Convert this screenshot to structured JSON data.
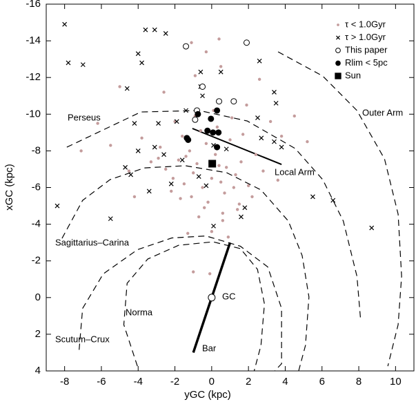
{
  "chart_data": {
    "type": "scatter",
    "xlabel": "yGC (kpc)",
    "ylabel": "xGC (kpc)",
    "xlim": [
      -9,
      11
    ],
    "xticks": [
      -8,
      -6,
      -4,
      -2,
      0,
      2,
      4,
      6,
      8,
      10
    ],
    "ylim": [
      -16,
      4
    ],
    "yticks": [
      -16,
      -14,
      -12,
      -10,
      -8,
      -6,
      -4,
      -2,
      0,
      2,
      4
    ],
    "legend": "upper right",
    "series": [
      {
        "name": "τ < 1.0Gyr",
        "marker": "dot",
        "color": "#c49c9c",
        "x": [
          -2.5,
          -2.1,
          -1.8,
          -1.5,
          -1.2,
          -1,
          -0.8,
          -0.5,
          -0.3,
          0,
          0.2,
          0.5,
          0.8,
          1,
          1.3,
          1.6,
          2,
          2.4,
          2.8,
          -2.8,
          -2.2,
          -1.6,
          -1.1,
          -0.6,
          -0.2,
          0.3,
          0.7,
          1.2,
          1.7,
          2.2,
          -2,
          -1.4,
          -0.9,
          -0.4,
          0.1,
          0.6,
          1.1,
          1.5,
          -1.7,
          -0.7,
          0.4,
          1.4,
          -3.3,
          -3.8,
          -4.5,
          -5.5,
          -6.2,
          -7.1,
          3.2,
          3.8,
          4.5,
          5.2,
          -0.9,
          0.5,
          -0.3,
          -2.6,
          2.6,
          -1.3,
          0.9,
          -0.1,
          1.9,
          -4.2,
          -5,
          3.6,
          0.6,
          -1,
          -1.1,
          0,
          0.4,
          -2.9
        ],
        "y": [
          -7,
          -6.5,
          -7.5,
          -6.2,
          -8,
          -6.8,
          -7.3,
          -6,
          -8.4,
          -6.5,
          -7.8,
          -6.3,
          -7.1,
          -8.6,
          -6.7,
          -7.4,
          -6.1,
          -7.8,
          -6.9,
          -8.2,
          -5.8,
          -8.8,
          -5.5,
          -9.1,
          -5.2,
          -9.3,
          -5.7,
          -6,
          -8.9,
          -5.5,
          -9.6,
          -7.7,
          -9.9,
          -4.9,
          -10.2,
          -4.6,
          -9.8,
          -5.1,
          -5.4,
          -4.4,
          -7.2,
          -4.8,
          -7.4,
          -8.7,
          -6.9,
          -8.3,
          -9.5,
          -8,
          -9.6,
          -8.8,
          -9.9,
          -8.5,
          -12.1,
          -12.6,
          -13.4,
          -11.2,
          -11.9,
          -3.5,
          -3.3,
          -1.3,
          -10.5,
          -5.5,
          -11.5,
          -6.4,
          -4.2,
          -1.4,
          -13.9,
          -3.6,
          -14.1,
          -7.6
        ]
      },
      {
        "name": "τ > 1.0Gyr",
        "marker": "cross",
        "color": "#000000",
        "x": [
          -8,
          -7.8,
          -7,
          -3.6,
          -3.1,
          -2.5,
          -4,
          -3.8,
          -4.6,
          -0.6,
          -0.6,
          2.6,
          3.4,
          3.5,
          3.4,
          1.8,
          1.6,
          0.1,
          -8.4,
          -5.5,
          8.7,
          5.5,
          6.6,
          -2.9,
          -1.9,
          -4.2,
          -4.7,
          -4.4,
          -3.4,
          -2.2,
          -4,
          -0.7,
          -0.3,
          0.1,
          -1.6,
          0.8,
          2.7,
          2.5,
          -3.1,
          3.8,
          -0.5,
          0.5,
          -2.6,
          -1.4
        ],
        "y": [
          -14.9,
          -12.8,
          -12.7,
          -14.6,
          -14.6,
          -14.4,
          -13.3,
          -12.8,
          -11.4,
          -12.3,
          -11.5,
          -12.9,
          -11.2,
          -10.6,
          -8.5,
          -4.9,
          -4.4,
          -3.9,
          -5,
          -4.3,
          -3.8,
          -5.5,
          -5.3,
          -9.5,
          -9.6,
          -9.5,
          -7.1,
          -6.7,
          -5.8,
          -6.2,
          -8,
          -6.6,
          -6.1,
          -8.3,
          -7.5,
          -8.1,
          -8.7,
          -9.8,
          -8.2,
          -8.2,
          -11,
          -12.3,
          -7.8,
          -10.2
        ]
      },
      {
        "name": "This paper",
        "marker": "open-circle",
        "color": "#000000",
        "x": [
          -1.4,
          1.9,
          -0.5,
          1.2,
          0.4,
          -0.8,
          -0.9
        ],
        "y": [
          -13.7,
          -13.9,
          -11.5,
          -10.7,
          -10.7,
          -10.2,
          -9.7
        ]
      },
      {
        "name": "Rlim < 5pc",
        "marker": "filled-circle",
        "color": "#000000",
        "x": [
          -0.75,
          -0.04,
          0.29,
          -0.23,
          0.07,
          0.37,
          -1.35,
          -1.28,
          0.29
        ],
        "y": [
          -10,
          -9.75,
          -10.2,
          -9.1,
          -9,
          -9,
          -8.7,
          -8.6,
          -8.2
        ]
      },
      {
        "name": "Sun",
        "marker": "square",
        "color": "#000000",
        "x": [
          0.03
        ],
        "y": [
          -7.3
        ]
      }
    ],
    "center": {
      "x": 0,
      "y": 0
    },
    "lines": [
      {
        "style": "dashed",
        "width": 1.2,
        "x": [
          -7.88,
          -3.85,
          -0.68,
          1.93,
          4.54,
          6.04,
          7.16,
          7.9,
          8.09
        ],
        "y": [
          -8.2,
          -10.12,
          -10.2,
          -9.63,
          -8.13,
          -6.43,
          -4.17,
          -1.16,
          1.1
        ]
      },
      {
        "style": "dashed",
        "width": 1.2,
        "x": [
          3.61,
          6.04,
          7.9,
          9.4,
          10.14,
          10.33,
          10.14,
          9.58
        ],
        "y": [
          -13.4,
          -12.08,
          -10.2,
          -7.56,
          -4.55,
          -1.16,
          1.48,
          3.74
        ]
      },
      {
        "style": "dashed",
        "width": 1.2,
        "x": [
          -8.14,
          -7.02,
          -5.53,
          -3.66,
          -1.43,
          0.81,
          2.68,
          4.17,
          4.92,
          5.29,
          5.1,
          4.73
        ],
        "y": [
          -3.23,
          -5.3,
          -6.43,
          -7.07,
          -7.19,
          -6.81,
          -5.87,
          -4.17,
          -2.29,
          -0.03,
          2.61,
          4
        ]
      },
      {
        "style": "dashed",
        "width": 1.2,
        "x": [
          -7.21,
          -7.02,
          -5.9,
          -4.04,
          -2.17,
          -0.31,
          1.56,
          3.05,
          3.8,
          3.8,
          3.43
        ],
        "y": [
          2.85,
          0.59,
          -1.29,
          -2.61,
          -3.25,
          -3.36,
          -2.8,
          -1.67,
          0.59,
          3.61,
          4
        ]
      },
      {
        "style": "dashed",
        "width": 1.2,
        "x": [
          -4.04,
          -4.78,
          -4.6,
          -3.48,
          -1.8,
          0.07,
          1.56,
          2.49,
          2.87,
          2.68,
          2.31
        ],
        "y": [
          3.74,
          1.48,
          -0.78,
          -2.1,
          -2.85,
          -3.04,
          -2.67,
          -1.54,
          0.35,
          2.61,
          4
        ]
      },
      {
        "style": "solid",
        "width": 2,
        "x": [
          -1.05,
          3.8
        ],
        "y": [
          -9.22,
          -7.26
        ]
      },
      {
        "style": "solid",
        "width": 3.5,
        "x": [
          1,
          -1
        ],
        "y": [
          -3,
          3
        ]
      }
    ],
    "annotations": [
      "Perseus",
      "Outer Arm",
      "Local Arm",
      "Sagittarius–Carina",
      "Norma",
      "Scutum–Crux",
      "GC",
      "Bar"
    ]
  }
}
